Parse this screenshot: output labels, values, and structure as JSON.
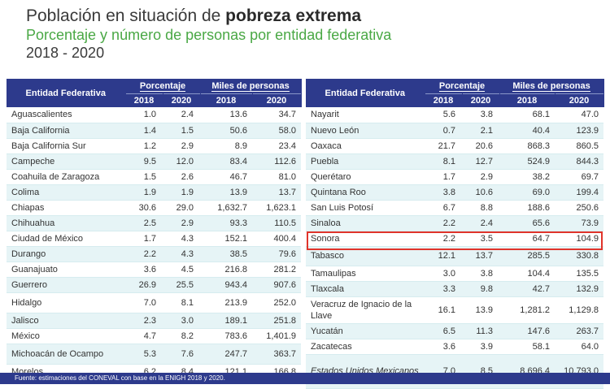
{
  "title_plain": "Población en situación de ",
  "title_bold": "pobreza extrema",
  "subtitle": "Porcentaje y número de personas por entidad federativa",
  "years": "2018 - 2020",
  "headers": {
    "entity": "Entidad Federativa",
    "pct": "Porcentaje",
    "miles": "Miles de personas",
    "y2018": "2018",
    "y2020": "2020"
  },
  "left_rows": [
    {
      "entity": "Aguascalientes",
      "p18": "1.0",
      "p20": "2.4",
      "m18": "13.6",
      "m20": "34.7"
    },
    {
      "entity": "Baja California",
      "p18": "1.4",
      "p20": "1.5",
      "m18": "50.6",
      "m20": "58.0"
    },
    {
      "entity": "Baja California Sur",
      "p18": "1.2",
      "p20": "2.9",
      "m18": "8.9",
      "m20": "23.4"
    },
    {
      "entity": "Campeche",
      "p18": "9.5",
      "p20": "12.0",
      "m18": "83.4",
      "m20": "112.6"
    },
    {
      "entity": "Coahuila de Zaragoza",
      "p18": "1.5",
      "p20": "2.6",
      "m18": "46.7",
      "m20": "81.0"
    },
    {
      "entity": "Colima",
      "p18": "1.9",
      "p20": "1.9",
      "m18": "13.9",
      "m20": "13.7"
    },
    {
      "entity": "Chiapas",
      "p18": "30.6",
      "p20": "29.0",
      "m18": "1,632.7",
      "m20": "1,623.1"
    },
    {
      "entity": "Chihuahua",
      "p18": "2.5",
      "p20": "2.9",
      "m18": "93.3",
      "m20": "110.5"
    },
    {
      "entity": "Ciudad de México",
      "p18": "1.7",
      "p20": "4.3",
      "m18": "152.1",
      "m20": "400.4"
    },
    {
      "entity": "Durango",
      "p18": "2.2",
      "p20": "4.3",
      "m18": "38.5",
      "m20": "79.6"
    },
    {
      "entity": "Guanajuato",
      "p18": "3.6",
      "p20": "4.5",
      "m18": "216.8",
      "m20": "281.2"
    },
    {
      "entity": "Guerrero",
      "p18": "26.9",
      "p20": "25.5",
      "m18": "943.4",
      "m20": "907.6"
    },
    {
      "entity": "Hidalgo",
      "p18": "7.0",
      "p20": "8.1",
      "m18": "213.9",
      "m20": "252.0"
    },
    {
      "entity": "Jalisco",
      "p18": "2.3",
      "p20": "3.0",
      "m18": "189.1",
      "m20": "251.8"
    },
    {
      "entity": "México",
      "p18": "4.7",
      "p20": "8.2",
      "m18": "783.6",
      "m20": "1,401.9"
    },
    {
      "entity": "Michoacán de Ocampo",
      "p18": "5.3",
      "p20": "7.6",
      "m18": "247.7",
      "m20": "363.7"
    },
    {
      "entity": "Morelos",
      "p18": "6.2",
      "p20": "8.4",
      "m18": "121.1",
      "m20": "166.8"
    }
  ],
  "right_rows": [
    {
      "entity": "Nayarit",
      "p18": "5.6",
      "p20": "3.8",
      "m18": "68.1",
      "m20": "47.0"
    },
    {
      "entity": "Nuevo León",
      "p18": "0.7",
      "p20": "2.1",
      "m18": "40.4",
      "m20": "123.9"
    },
    {
      "entity": "Oaxaca",
      "p18": "21.7",
      "p20": "20.6",
      "m18": "868.3",
      "m20": "860.5"
    },
    {
      "entity": "Puebla",
      "p18": "8.1",
      "p20": "12.7",
      "m18": "524.9",
      "m20": "844.3"
    },
    {
      "entity": "Querétaro",
      "p18": "1.7",
      "p20": "2.9",
      "m18": "38.2",
      "m20": "69.7"
    },
    {
      "entity": "Quintana Roo",
      "p18": "3.8",
      "p20": "10.6",
      "m18": "69.0",
      "m20": "199.4"
    },
    {
      "entity": "San Luis Potosí",
      "p18": "6.7",
      "p20": "8.8",
      "m18": "188.6",
      "m20": "250.6"
    },
    {
      "entity": "Sinaloa",
      "p18": "2.2",
      "p20": "2.4",
      "m18": "65.6",
      "m20": "73.9"
    },
    {
      "entity": "Sonora",
      "p18": "2.2",
      "p20": "3.5",
      "m18": "64.7",
      "m20": "104.9"
    },
    {
      "entity": "Tabasco",
      "p18": "12.1",
      "p20": "13.7",
      "m18": "285.5",
      "m20": "330.8"
    },
    {
      "entity": "Tamaulipas",
      "p18": "3.0",
      "p20": "3.8",
      "m18": "104.4",
      "m20": "135.5"
    },
    {
      "entity": "Tlaxcala",
      "p18": "3.3",
      "p20": "9.8",
      "m18": "42.7",
      "m20": "132.9"
    },
    {
      "entity": "Veracruz de Ignacio de la Llave",
      "p18": "16.1",
      "p20": "13.9",
      "m18": "1,281.2",
      "m20": "1,129.8"
    },
    {
      "entity": "Yucatán",
      "p18": "6.5",
      "p20": "11.3",
      "m18": "147.6",
      "m20": "263.7"
    },
    {
      "entity": "Zacatecas",
      "p18": "3.6",
      "p20": "3.9",
      "m18": "58.1",
      "m20": "64.0"
    },
    {
      "entity": "Estados Unidos Mexicanos",
      "p18": "7.0",
      "p20": "8.5",
      "m18": "8,696.4",
      "m20": "10,793.0"
    }
  ],
  "highlight_color": "#e0342b",
  "header_color": "#2d3a8c",
  "footer": "Fuente: estimaciones del CONEVAL con base en la ENIGH 2018 y 2020."
}
